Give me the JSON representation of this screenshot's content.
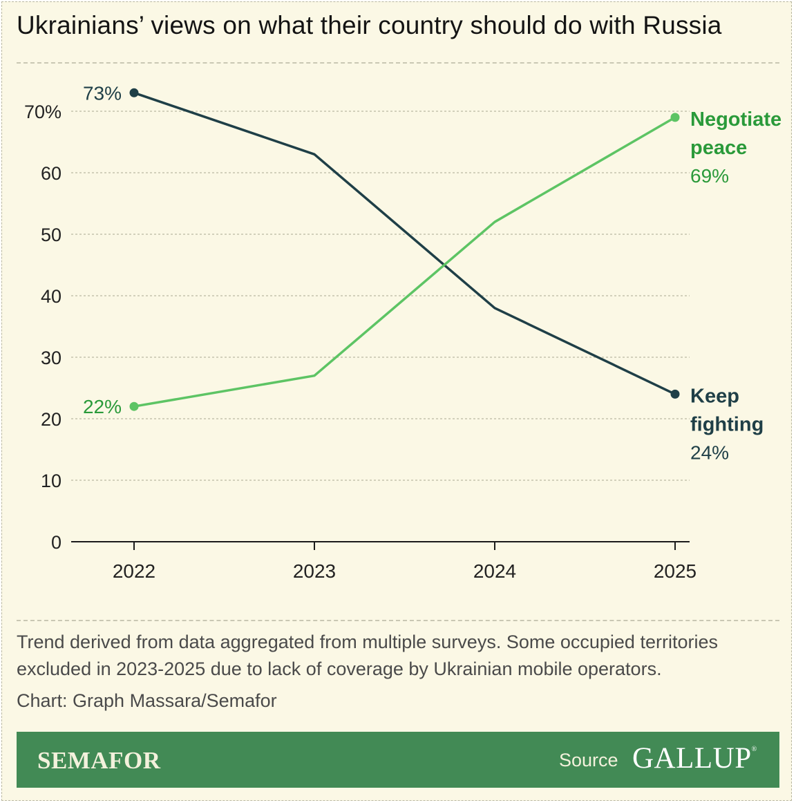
{
  "colors": {
    "background": "#fbf8e5",
    "keep_fighting": "#1f3f47",
    "negotiate_peace": "#5dc464",
    "negotiate_text": "#2a9a3a",
    "footer": "#428a55"
  },
  "title": "Ukrainians’ views on what their country should do with Russia",
  "chart_data": {
    "type": "line",
    "title": "Ukrainians’ views on what their country should do with Russia",
    "x": [
      "2022",
      "2023",
      "2024",
      "2025"
    ],
    "ylim": [
      0,
      75
    ],
    "yticks": [
      0,
      10,
      20,
      30,
      40,
      50,
      60,
      70
    ],
    "ytick_labels": [
      "0",
      "10",
      "20",
      "30",
      "40",
      "50",
      "60",
      "70%"
    ],
    "grid": true,
    "series": [
      {
        "key": "keep_fighting",
        "name_lines": [
          "Keep",
          "fighting"
        ],
        "values": [
          73,
          63,
          38,
          24
        ],
        "start_label": "73%",
        "end_label": "24%"
      },
      {
        "key": "negotiate_peace",
        "name_lines": [
          "Negotiate",
          "peace"
        ],
        "values": [
          22,
          27,
          52,
          69
        ],
        "start_label": "22%",
        "end_label": "69%"
      }
    ]
  },
  "note": "Trend derived from data aggregated from multiple surveys. Some occupied territories excluded in 2023-2025 due to lack of coverage by Ukrainian mobile operators.",
  "credit": "Chart: Graph Massara/Semafor",
  "footer": {
    "brand": "SEMAFOR",
    "source_label": "Source",
    "source_name": "GALLUP",
    "registered": "®"
  }
}
